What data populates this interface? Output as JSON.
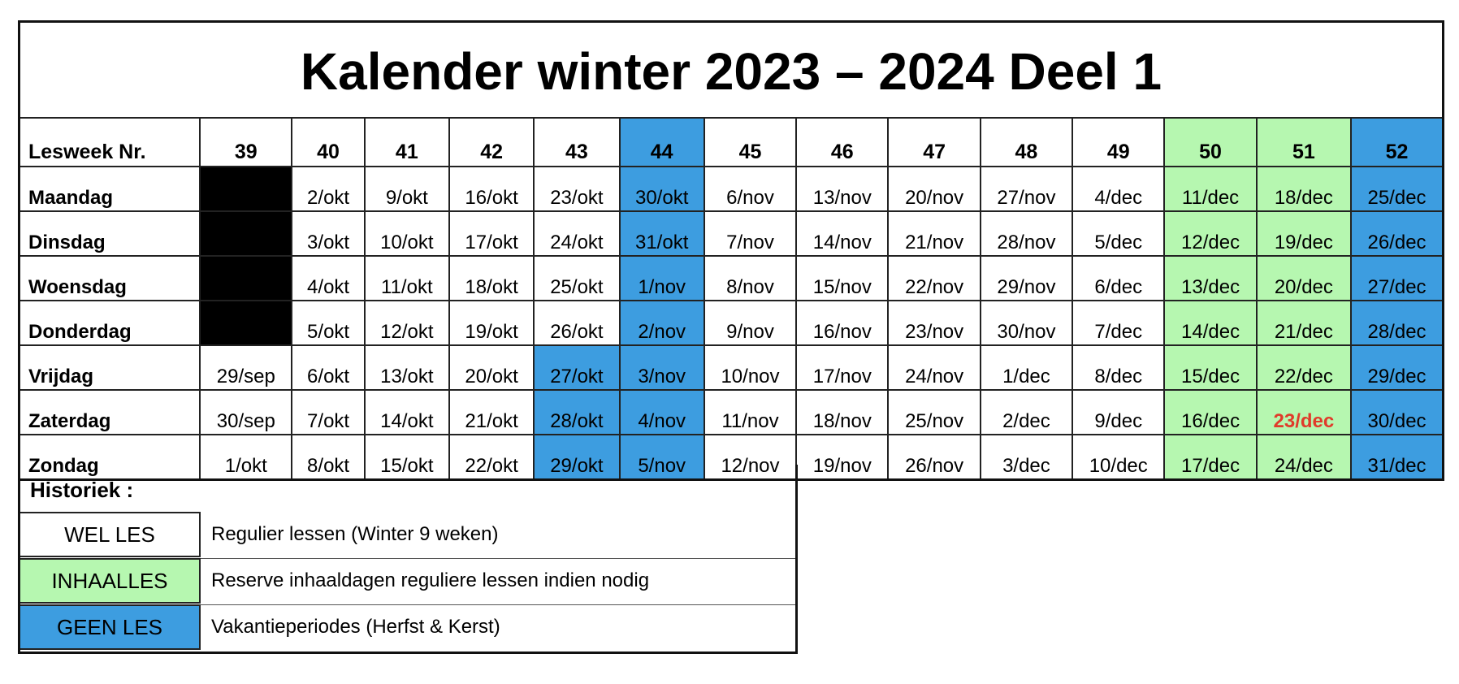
{
  "title": "Kalender winter 2023 – 2024 Deel 1",
  "colors": {
    "green": "#b6f7b0",
    "blue": "#3d9de0",
    "black": "#000000",
    "red": "#e03b2a"
  },
  "header_label": "Lesweek Nr.",
  "weeks": [
    {
      "nr": "39",
      "color": null
    },
    {
      "nr": "40",
      "color": null
    },
    {
      "nr": "41",
      "color": null
    },
    {
      "nr": "42",
      "color": null
    },
    {
      "nr": "43",
      "color": null
    },
    {
      "nr": "44",
      "color": "blue"
    },
    {
      "nr": "45",
      "color": null
    },
    {
      "nr": "46",
      "color": null
    },
    {
      "nr": "47",
      "color": null
    },
    {
      "nr": "48",
      "color": null
    },
    {
      "nr": "49",
      "color": null
    },
    {
      "nr": "50",
      "color": "green"
    },
    {
      "nr": "51",
      "color": "green"
    },
    {
      "nr": "52",
      "color": "blue"
    }
  ],
  "days": [
    {
      "label": "Maandag",
      "cells": [
        {
          "text": "",
          "color": "black"
        },
        {
          "text": "2/okt"
        },
        {
          "text": "9/okt"
        },
        {
          "text": "16/okt"
        },
        {
          "text": "23/okt"
        },
        {
          "text": "30/okt",
          "color": "blue"
        },
        {
          "text": "6/nov"
        },
        {
          "text": "13/nov"
        },
        {
          "text": "20/nov"
        },
        {
          "text": "27/nov"
        },
        {
          "text": "4/dec"
        },
        {
          "text": "11/dec",
          "color": "green"
        },
        {
          "text": "18/dec",
          "color": "green"
        },
        {
          "text": "25/dec",
          "color": "blue"
        }
      ]
    },
    {
      "label": "Dinsdag",
      "cells": [
        {
          "text": "",
          "color": "black"
        },
        {
          "text": "3/okt"
        },
        {
          "text": "10/okt"
        },
        {
          "text": "17/okt"
        },
        {
          "text": "24/okt"
        },
        {
          "text": "31/okt",
          "color": "blue"
        },
        {
          "text": "7/nov"
        },
        {
          "text": "14/nov"
        },
        {
          "text": "21/nov"
        },
        {
          "text": "28/nov"
        },
        {
          "text": "5/dec"
        },
        {
          "text": "12/dec",
          "color": "green"
        },
        {
          "text": "19/dec",
          "color": "green"
        },
        {
          "text": "26/dec",
          "color": "blue"
        }
      ]
    },
    {
      "label": "Woensdag",
      "cells": [
        {
          "text": "",
          "color": "black"
        },
        {
          "text": "4/okt"
        },
        {
          "text": "11/okt"
        },
        {
          "text": "18/okt"
        },
        {
          "text": "25/okt"
        },
        {
          "text": "1/nov",
          "color": "blue"
        },
        {
          "text": "8/nov"
        },
        {
          "text": "15/nov"
        },
        {
          "text": "22/nov"
        },
        {
          "text": "29/nov"
        },
        {
          "text": "6/dec"
        },
        {
          "text": "13/dec",
          "color": "green"
        },
        {
          "text": "20/dec",
          "color": "green"
        },
        {
          "text": "27/dec",
          "color": "blue"
        }
      ]
    },
    {
      "label": "Donderdag",
      "cells": [
        {
          "text": "",
          "color": "black"
        },
        {
          "text": "5/okt"
        },
        {
          "text": "12/okt"
        },
        {
          "text": "19/okt"
        },
        {
          "text": "26/okt"
        },
        {
          "text": "2/nov",
          "color": "blue"
        },
        {
          "text": "9/nov"
        },
        {
          "text": "16/nov"
        },
        {
          "text": "23/nov"
        },
        {
          "text": "30/nov"
        },
        {
          "text": "7/dec"
        },
        {
          "text": "14/dec",
          "color": "green"
        },
        {
          "text": "21/dec",
          "color": "green"
        },
        {
          "text": "28/dec",
          "color": "blue"
        }
      ]
    },
    {
      "label": "Vrijdag",
      "cells": [
        {
          "text": "29/sep"
        },
        {
          "text": "6/okt"
        },
        {
          "text": "13/okt"
        },
        {
          "text": "20/okt"
        },
        {
          "text": "27/okt",
          "color": "blue"
        },
        {
          "text": "3/nov",
          "color": "blue"
        },
        {
          "text": "10/nov"
        },
        {
          "text": "17/nov"
        },
        {
          "text": "24/nov"
        },
        {
          "text": "1/dec"
        },
        {
          "text": "8/dec"
        },
        {
          "text": "15/dec",
          "color": "green"
        },
        {
          "text": "22/dec",
          "color": "green"
        },
        {
          "text": "29/dec",
          "color": "blue"
        }
      ]
    },
    {
      "label": "Zaterdag",
      "cells": [
        {
          "text": "30/sep"
        },
        {
          "text": "7/okt"
        },
        {
          "text": "14/okt"
        },
        {
          "text": "21/okt"
        },
        {
          "text": "28/okt",
          "color": "blue"
        },
        {
          "text": "4/nov",
          "color": "blue"
        },
        {
          "text": "11/nov"
        },
        {
          "text": "18/nov"
        },
        {
          "text": "25/nov"
        },
        {
          "text": "2/dec"
        },
        {
          "text": "9/dec"
        },
        {
          "text": "16/dec",
          "color": "green"
        },
        {
          "text": "23/dec",
          "color": "green",
          "red": true
        },
        {
          "text": "30/dec",
          "color": "blue"
        }
      ]
    },
    {
      "label": "Zondag",
      "cells": [
        {
          "text": "1/okt"
        },
        {
          "text": "8/okt"
        },
        {
          "text": "15/okt"
        },
        {
          "text": "22/okt"
        },
        {
          "text": "29/okt",
          "color": "blue"
        },
        {
          "text": "5/nov",
          "color": "blue"
        },
        {
          "text": "12/nov"
        },
        {
          "text": "19/nov"
        },
        {
          "text": "26/nov"
        },
        {
          "text": "3/dec"
        },
        {
          "text": "10/dec"
        },
        {
          "text": "17/dec",
          "color": "green"
        },
        {
          "text": "24/dec",
          "color": "green"
        },
        {
          "text": "31/dec",
          "color": "blue"
        }
      ]
    }
  ],
  "legend": {
    "heading": "Historiek :",
    "items": [
      {
        "label": "WEL LES",
        "color": null,
        "description": "Regulier lessen (Winter 9 weken)"
      },
      {
        "label": "INHAALLES",
        "color": "green",
        "description": "Reserve inhaaldagen reguliere lessen indien nodig"
      },
      {
        "label": "GEEN LES",
        "color": "blue",
        "description": "Vakantieperiodes (Herfst & Kerst)"
      }
    ]
  }
}
